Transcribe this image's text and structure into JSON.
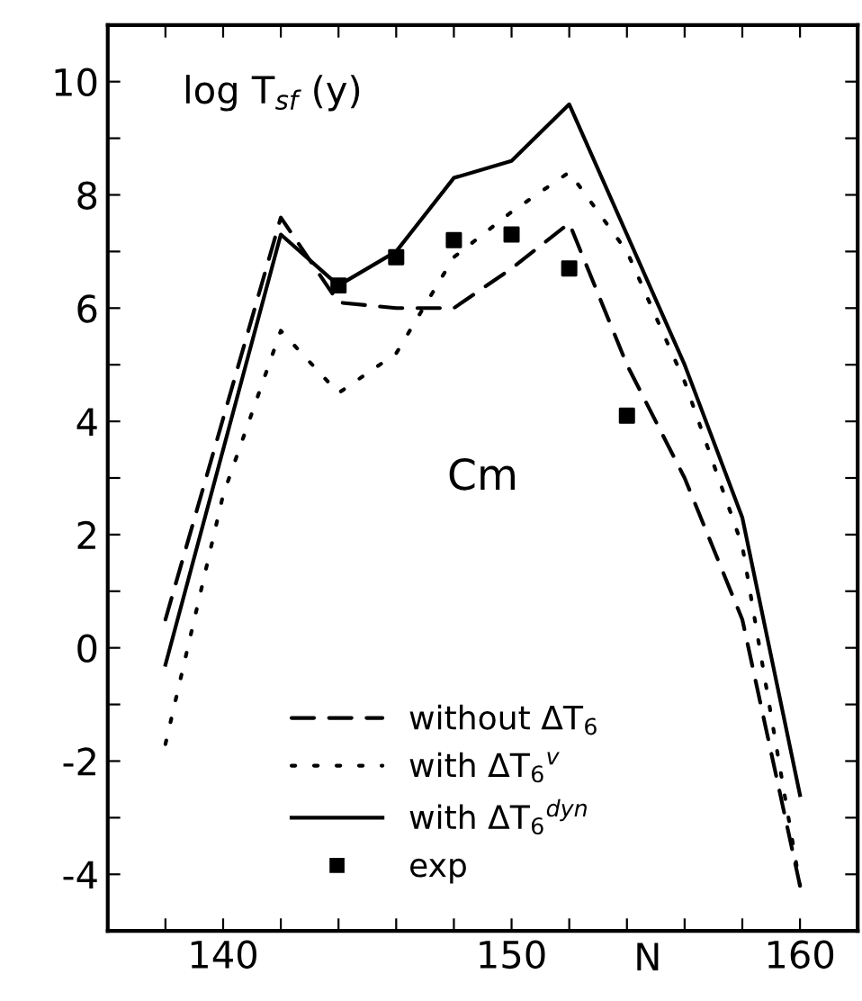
{
  "chart_data": {
    "type": "line",
    "xlabel": "N",
    "ylabel": "log T$_{sf}$ (y)",
    "annotations": [
      "Cm"
    ],
    "series": [
      {
        "name": "without ΔT$_{6}$",
        "color": "#000000",
        "line_style": "dashed",
        "marker": "none",
        "x": [
          138,
          142,
          144,
          146,
          148,
          150,
          152,
          154,
          156,
          158,
          160
        ],
        "values": [
          0.5,
          7.6,
          6.1,
          6.0,
          6.0,
          6.7,
          7.5,
          5.0,
          3.0,
          0.5,
          -4.2
        ]
      },
      {
        "name": "with ΔT$_{6}$$^{v}$",
        "color": "#000000",
        "line_style": "dotted",
        "marker": "none",
        "x": [
          138,
          140,
          142,
          144,
          146,
          148,
          150,
          152,
          154,
          156,
          158,
          160
        ],
        "values": [
          -1.7,
          2.7,
          5.6,
          4.5,
          5.2,
          6.9,
          7.7,
          8.4,
          7.0,
          4.7,
          1.8,
          -4.2
        ]
      },
      {
        "name": "with ΔT$_{6}$$^{dyn}$",
        "color": "#000000",
        "line_style": "solid",
        "marker": "none",
        "x": [
          138,
          142,
          144,
          146,
          148,
          150,
          152,
          156,
          158,
          160
        ],
        "values": [
          -0.3,
          7.3,
          6.4,
          7.0,
          8.3,
          8.6,
          9.6,
          5.0,
          2.3,
          -2.6
        ]
      },
      {
        "name": "exp",
        "type": "scatter",
        "color": "#000000",
        "marker": "square",
        "x": [
          144,
          146,
          148,
          150,
          152,
          154
        ],
        "values": [
          6.4,
          6.9,
          7.2,
          7.3,
          6.7,
          4.1
        ]
      }
    ],
    "xlim": [
      136,
      162
    ],
    "xticks": [
      {
        "value": 138,
        "label": null
      },
      140,
      {
        "value": 142,
        "label": null
      },
      {
        "value": 144,
        "label": null
      },
      {
        "value": 146,
        "label": null
      },
      {
        "value": 148,
        "label": null
      },
      150,
      {
        "value": 152,
        "label": null
      },
      {
        "value": 154,
        "label": null
      },
      {
        "value": 156,
        "label": null
      },
      {
        "value": 158,
        "label": null
      },
      160
    ],
    "ylim": [
      -5,
      11
    ],
    "yticks": [
      -4,
      {
        "value": -3,
        "label": null
      },
      -2,
      {
        "value": -1,
        "label": null
      },
      0,
      {
        "value": 1,
        "label": null
      },
      2,
      {
        "value": 3,
        "label": null
      },
      4,
      {
        "value": 5,
        "label": null
      },
      6,
      {
        "value": 7,
        "label": null
      },
      8,
      {
        "value": 9,
        "label": null
      },
      10
    ],
    "grid": false,
    "legend": "bottom"
  }
}
